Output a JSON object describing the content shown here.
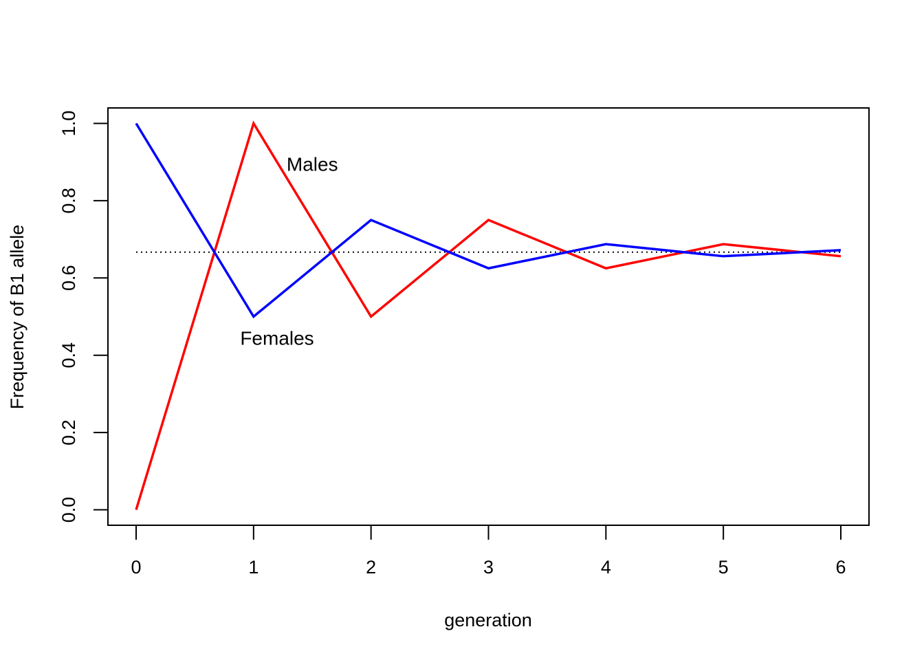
{
  "chart_data": {
    "type": "line",
    "title": "",
    "xlabel": "generation",
    "ylabel": "Frequency of B1 allele",
    "x": [
      0,
      1,
      2,
      3,
      4,
      5,
      6
    ],
    "xticks": [
      "0",
      "1",
      "2",
      "3",
      "4",
      "5",
      "6"
    ],
    "yticks": [
      "0.0",
      "0.2",
      "0.4",
      "0.6",
      "0.8",
      "1.0"
    ],
    "xlim": [
      -0.24,
      6.24
    ],
    "ylim": [
      -0.04,
      1.04
    ],
    "grid": false,
    "series": [
      {
        "name": "Males",
        "color": "#ff0000",
        "values": [
          0,
          1,
          0.5,
          0.75,
          0.625,
          0.6875,
          0.65625
        ]
      },
      {
        "name": "Females",
        "color": "#0000ff",
        "values": [
          1,
          0.5,
          0.75,
          0.625,
          0.6875,
          0.65625,
          0.671875
        ]
      }
    ],
    "reference_line": {
      "style": "dotted",
      "color": "#000000",
      "y": 0.6667
    },
    "annotations": [
      {
        "text": "Males",
        "x": 1.5,
        "y": 0.895
      },
      {
        "text": "Females",
        "x": 1.2,
        "y": 0.445
      }
    ]
  }
}
